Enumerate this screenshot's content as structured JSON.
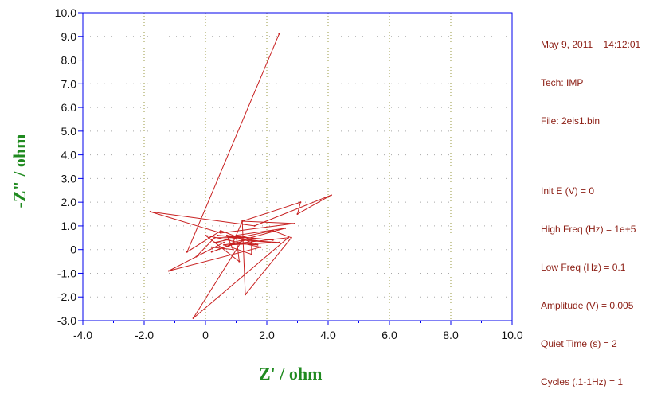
{
  "info": {
    "header": "May 9, 2011    14:12:01",
    "tech": "Tech: IMP",
    "file": "File: 2eis1.bin",
    "params": [
      "Init E (V) = 0",
      "High Freq (Hz) = 1e+5",
      "Low Freq (Hz) = 0.1",
      "Amplitude (V) = 0.005",
      "Quiet Time (s) = 2",
      "Cycles (.1-1Hz) = 1"
    ]
  },
  "chart_data": {
    "type": "line",
    "xlabel": "Z' / ohm",
    "ylabel": "-Z\" / ohm",
    "xlim": [
      -4.0,
      10.0
    ],
    "ylim": [
      -3.0,
      10.0
    ],
    "x_ticks": [
      "-4.0",
      "-2.0",
      "0",
      "2.0",
      "4.0",
      "6.0",
      "8.0",
      "10.0"
    ],
    "y_ticks": [
      "-3.0",
      "-2.0",
      "-1.0",
      "0",
      "1.0",
      "2.0",
      "3.0",
      "4.0",
      "5.0",
      "6.0",
      "7.0",
      "8.0",
      "9.0",
      "10.0"
    ],
    "grid": true,
    "colors": {
      "series": "#c82020",
      "frame": "#0000ee",
      "vgrid": "#9a9a40",
      "hgrid": "#a8a8a8",
      "axis_title": "#1f8a1f",
      "info_text": "#8b1c12"
    },
    "series": [
      {
        "x": [
          2.4,
          -0.6,
          0.5,
          1.7,
          0.3,
          2.2,
          2.8,
          1.3,
          1.2,
          2.9,
          0.5,
          -1.8,
          1.6,
          4.1,
          3.0,
          3.1,
          1.2,
          0.9,
          2.6,
          1.0,
          1.1,
          0.0,
          1.8,
          -1.2,
          0.6,
          -0.3,
          0.3,
          1.5,
          1.5,
          0.6,
          2.7,
          -0.4,
          1.2,
          2.4,
          0.8,
          0.2,
          1.3,
          2.1,
          0.4,
          2.2,
          0.7,
          0.9,
          0.2
        ],
        "y": [
          9.1,
          -0.1,
          0.8,
          0.2,
          0.3,
          0.8,
          0.5,
          -1.9,
          1.2,
          1.1,
          0.7,
          1.6,
          1.0,
          2.3,
          1.5,
          2.0,
          1.2,
          0.3,
          0.9,
          0.6,
          -0.5,
          0.6,
          0.1,
          -0.9,
          0.3,
          -0.3,
          0.5,
          0.5,
          -0.2,
          0.2,
          0.5,
          -2.9,
          0.4,
          0.3,
          0.2,
          -0.1,
          0.4,
          0.3,
          0.6,
          0.4,
          0.6,
          0.0,
          0.1
        ]
      }
    ]
  }
}
